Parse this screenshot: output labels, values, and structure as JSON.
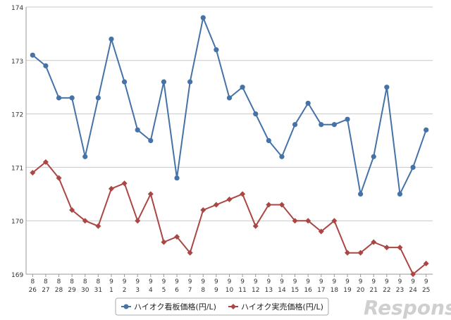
{
  "chart_data": {
    "type": "line",
    "title": "",
    "xlabel": "",
    "ylabel": "",
    "ylim": [
      169,
      174
    ],
    "yticks": [
      "169",
      "170",
      "171",
      "172",
      "173",
      "174"
    ],
    "grid": "horizontal",
    "legend_position": "bottom",
    "categories": [
      {
        "month": "8",
        "day": "26"
      },
      {
        "month": "8",
        "day": "27"
      },
      {
        "month": "8",
        "day": "28"
      },
      {
        "month": "8",
        "day": "29"
      },
      {
        "month": "8",
        "day": "30"
      },
      {
        "month": "8",
        "day": "31"
      },
      {
        "month": "9",
        "day": "1"
      },
      {
        "month": "9",
        "day": "2"
      },
      {
        "month": "9",
        "day": "3"
      },
      {
        "month": "9",
        "day": "4"
      },
      {
        "month": "9",
        "day": "5"
      },
      {
        "month": "9",
        "day": "6"
      },
      {
        "month": "9",
        "day": "7"
      },
      {
        "month": "9",
        "day": "8"
      },
      {
        "month": "9",
        "day": "9"
      },
      {
        "month": "9",
        "day": "10"
      },
      {
        "month": "9",
        "day": "11"
      },
      {
        "month": "9",
        "day": "12"
      },
      {
        "month": "9",
        "day": "13"
      },
      {
        "month": "9",
        "day": "14"
      },
      {
        "month": "9",
        "day": "15"
      },
      {
        "month": "9",
        "day": "16"
      },
      {
        "month": "9",
        "day": "17"
      },
      {
        "month": "9",
        "day": "18"
      },
      {
        "month": "9",
        "day": "19"
      },
      {
        "month": "9",
        "day": "20"
      },
      {
        "month": "9",
        "day": "21"
      },
      {
        "month": "9",
        "day": "22"
      },
      {
        "month": "9",
        "day": "23"
      },
      {
        "month": "9",
        "day": "24"
      },
      {
        "month": "9",
        "day": "25"
      }
    ],
    "series": [
      {
        "name": "ハイオク看板価格(円/L)",
        "color": "#4572a7",
        "marker": "circle",
        "values": [
          173.1,
          172.9,
          172.3,
          172.3,
          171.2,
          172.3,
          173.4,
          172.6,
          171.7,
          171.5,
          172.6,
          170.8,
          172.6,
          173.8,
          173.2,
          172.3,
          172.5,
          172.0,
          171.5,
          171.2,
          171.8,
          172.2,
          171.8,
          171.8,
          171.9,
          170.5,
          171.2,
          172.5,
          170.5,
          171.0,
          171.7
        ]
      },
      {
        "name": "ハイオク実売価格(円/L)",
        "color": "#aa4643",
        "marker": "diamond",
        "values": [
          170.9,
          171.1,
          170.8,
          170.2,
          170.0,
          169.9,
          170.6,
          170.7,
          170.0,
          170.5,
          169.6,
          169.7,
          169.4,
          170.2,
          170.3,
          170.4,
          170.5,
          169.9,
          170.3,
          170.3,
          170.0,
          170.0,
          169.8,
          170.0,
          169.4,
          169.4,
          169.6,
          169.5,
          169.5,
          169.0,
          169.2
        ]
      }
    ]
  },
  "watermark": {
    "text": "Response."
  }
}
